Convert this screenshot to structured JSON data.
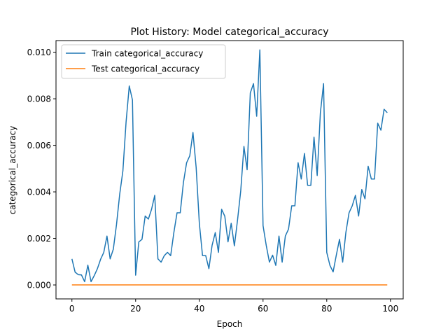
{
  "chart_data": {
    "type": "line",
    "title": "Plot History: Model categorical_accuracy",
    "xlabel": "Epoch",
    "ylabel": "categorical_accuracy",
    "xlim": [
      -5,
      104
    ],
    "ylim": [
      -0.0006,
      0.0105
    ],
    "xticks": [
      0,
      20,
      40,
      60,
      80,
      100
    ],
    "xtick_labels": [
      "0",
      "20",
      "40",
      "60",
      "80",
      "100"
    ],
    "yticks": [
      0.0,
      0.002,
      0.004,
      0.006,
      0.008,
      0.01
    ],
    "ytick_labels": [
      "0.000",
      "0.002",
      "0.004",
      "0.006",
      "0.008",
      "0.010"
    ],
    "grid": false,
    "legend_position": "top-left",
    "series": [
      {
        "name": "Train categorical_accuracy",
        "color": "#1f77b4",
        "x": [
          0,
          1,
          2,
          3,
          4,
          5,
          6,
          7,
          8,
          9,
          10,
          11,
          12,
          13,
          14,
          15,
          16,
          17,
          18,
          19,
          20,
          21,
          22,
          23,
          24,
          25,
          26,
          27,
          28,
          29,
          30,
          31,
          32,
          33,
          34,
          35,
          36,
          37,
          38,
          39,
          40,
          41,
          42,
          43,
          44,
          45,
          46,
          47,
          48,
          49,
          50,
          51,
          52,
          53,
          54,
          55,
          56,
          57,
          58,
          59,
          60,
          61,
          62,
          63,
          64,
          65,
          66,
          67,
          68,
          69,
          70,
          71,
          72,
          73,
          74,
          75,
          76,
          77,
          78,
          79,
          80,
          81,
          82,
          83,
          84,
          85,
          86,
          87,
          88,
          89,
          90,
          91,
          92,
          93,
          94,
          95,
          96,
          97,
          98,
          99
        ],
        "values": [
          0.00112,
          0.00055,
          0.00044,
          0.00043,
          0.00014,
          0.00085,
          0.00014,
          0.0004,
          0.0007,
          0.0011,
          0.0014,
          0.0021,
          0.00112,
          0.00154,
          0.0026,
          0.0039,
          0.0049,
          0.007,
          0.00855,
          0.00795,
          0.00042,
          0.00185,
          0.00196,
          0.00296,
          0.00283,
          0.00325,
          0.00385,
          0.00112,
          0.00098,
          0.00126,
          0.0014,
          0.00126,
          0.00225,
          0.0031,
          0.0031,
          0.0044,
          0.00525,
          0.00555,
          0.00655,
          0.00505,
          0.00265,
          0.00126,
          0.00126,
          0.0007,
          0.0017,
          0.00225,
          0.0014,
          0.00325,
          0.00295,
          0.00185,
          0.00265,
          0.00168,
          0.0028,
          0.00405,
          0.00595,
          0.00495,
          0.00825,
          0.00865,
          0.00725,
          0.0101,
          0.00255,
          0.0017,
          0.00098,
          0.00128,
          0.00084,
          0.0021,
          0.00098,
          0.0021,
          0.0024,
          0.0034,
          0.0034,
          0.00525,
          0.00455,
          0.00565,
          0.00428,
          0.00428,
          0.00635,
          0.0047,
          0.0074,
          0.00865,
          0.0014,
          0.00084,
          0.00056,
          0.00128,
          0.00196,
          0.00098,
          0.00225,
          0.0031,
          0.0034,
          0.00385,
          0.00296,
          0.0041,
          0.0037,
          0.0051,
          0.00455,
          0.00455,
          0.00695,
          0.00665,
          0.00755,
          0.0074
        ]
      },
      {
        "name": "Test categorical_accuracy",
        "color": "#ff7f0e",
        "x": [
          0,
          99
        ],
        "values": [
          0.0,
          0.0
        ]
      }
    ]
  }
}
